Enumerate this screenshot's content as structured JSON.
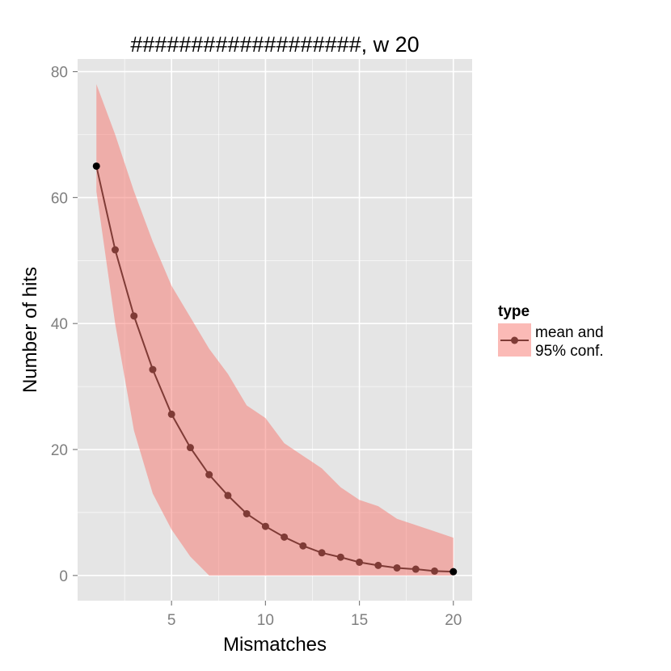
{
  "chart_data": {
    "type": "line",
    "title": "###################, w 20",
    "xlabel": "Mismatches",
    "ylabel": "Number of hits",
    "xlim": [
      0,
      21
    ],
    "ylim": [
      -4,
      82
    ],
    "x_ticks": [
      5,
      10,
      15,
      20
    ],
    "y_ticks": [
      0,
      20,
      40,
      60,
      80
    ],
    "grid": true,
    "legend_position": "right",
    "legend": {
      "title": "type",
      "entries": [
        {
          "label_line1": "mean and",
          "label_line2": "95% conf."
        }
      ]
    },
    "x": [
      1,
      2,
      3,
      4,
      5,
      6,
      7,
      8,
      9,
      10,
      11,
      12,
      13,
      14,
      15,
      16,
      17,
      18,
      19,
      20
    ],
    "series": [
      {
        "values": [
          65,
          51.7,
          41.2,
          32.7,
          25.6,
          20.3,
          16,
          12.7,
          9.8,
          7.8,
          6.1,
          4.7,
          3.6,
          2.9,
          2.1,
          1.6,
          1.2,
          1,
          0.7,
          0.6
        ],
        "lower": [
          61,
          40,
          23,
          13,
          7.3,
          3,
          0,
          0,
          0,
          0,
          0,
          0,
          0,
          0,
          0,
          0,
          0,
          0,
          0,
          0
        ],
        "upper": [
          78,
          70,
          61,
          53,
          46,
          41,
          36,
          32,
          27,
          25,
          21,
          19,
          17,
          14,
          12,
          11,
          9,
          8,
          7,
          6
        ]
      }
    ],
    "colors": {
      "band": "#f8766d",
      "line": "#7f3b36",
      "point": "#7f3b36",
      "end_point": "#000000",
      "panel": "#e5e5e5",
      "grid": "#ffffff"
    }
  }
}
